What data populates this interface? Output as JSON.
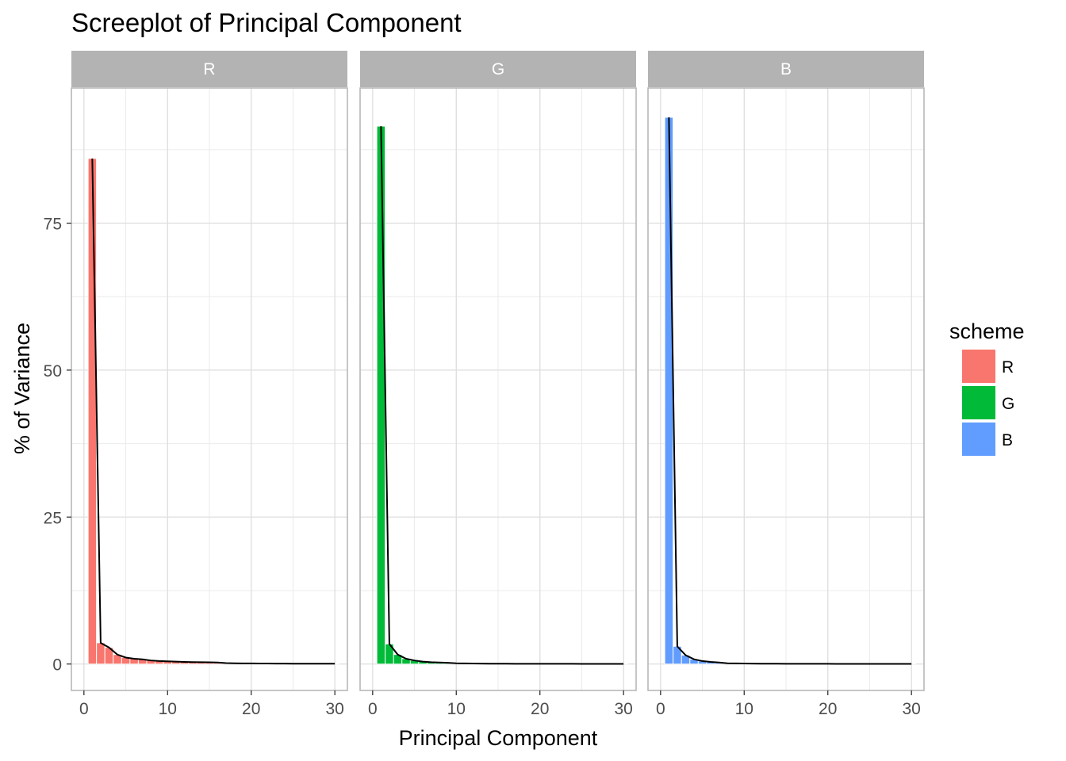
{
  "chart_data": {
    "type": "bar",
    "title": "Screeplot of Principal Component",
    "xlabel": "Principal Component",
    "ylabel": "% of Variance",
    "xlim": [
      -1.5,
      31.5
    ],
    "ylim": [
      -4.5,
      98
    ],
    "x_ticks": [
      0,
      10,
      20,
      30
    ],
    "y_ticks": [
      0,
      25,
      50,
      75
    ],
    "grid": true,
    "line_overlay": true,
    "legend": {
      "title": "scheme",
      "position": "right",
      "entries": [
        {
          "label": "R",
          "color": "#F8766D"
        },
        {
          "label": "G",
          "color": "#00BA38"
        },
        {
          "label": "B",
          "color": "#619CFF"
        }
      ]
    },
    "panels": [
      {
        "label": "R",
        "color": "#F8766D",
        "x": [
          1,
          2,
          3,
          4,
          5,
          6,
          7,
          8,
          9,
          10,
          11,
          12,
          13,
          14,
          15,
          16,
          17,
          18,
          19,
          20,
          21,
          22,
          23,
          24,
          25,
          26,
          27,
          28,
          29,
          30
        ],
        "values": [
          86.0,
          3.6,
          2.8,
          1.6,
          1.1,
          0.9,
          0.8,
          0.6,
          0.5,
          0.45,
          0.4,
          0.35,
          0.32,
          0.3,
          0.28,
          0.25,
          0.15,
          0.12,
          0.1,
          0.1,
          0.08,
          0.08,
          0.07,
          0.07,
          0.06,
          0.06,
          0.05,
          0.05,
          0.05,
          0.05
        ]
      },
      {
        "label": "G",
        "color": "#00BA38",
        "x": [
          1,
          2,
          3,
          4,
          5,
          6,
          7,
          8,
          9,
          10,
          11,
          12,
          13,
          14,
          15,
          16,
          17,
          18,
          19,
          20,
          21,
          22,
          23,
          24,
          25,
          26,
          27,
          28,
          29,
          30
        ],
        "values": [
          91.5,
          3.4,
          1.6,
          0.9,
          0.6,
          0.4,
          0.3,
          0.25,
          0.2,
          0.12,
          0.1,
          0.08,
          0.07,
          0.06,
          0.05,
          0.05,
          0.04,
          0.04,
          0.04,
          0.03,
          0.03,
          0.03,
          0.03,
          0.03,
          0.02,
          0.02,
          0.02,
          0.02,
          0.02,
          0.02
        ]
      },
      {
        "label": "B",
        "color": "#619CFF",
        "x": [
          1,
          2,
          3,
          4,
          5,
          6,
          7,
          8,
          9,
          10,
          11,
          12,
          13,
          14,
          15,
          16,
          17,
          18,
          19,
          20,
          21,
          22,
          23,
          24,
          25,
          26,
          27,
          28,
          29,
          30
        ],
        "values": [
          93.0,
          3.0,
          1.5,
          0.8,
          0.5,
          0.35,
          0.25,
          0.12,
          0.1,
          0.08,
          0.07,
          0.06,
          0.05,
          0.05,
          0.04,
          0.04,
          0.03,
          0.03,
          0.03,
          0.03,
          0.02,
          0.02,
          0.02,
          0.02,
          0.02,
          0.02,
          0.02,
          0.02,
          0.02,
          0.02
        ]
      }
    ]
  }
}
